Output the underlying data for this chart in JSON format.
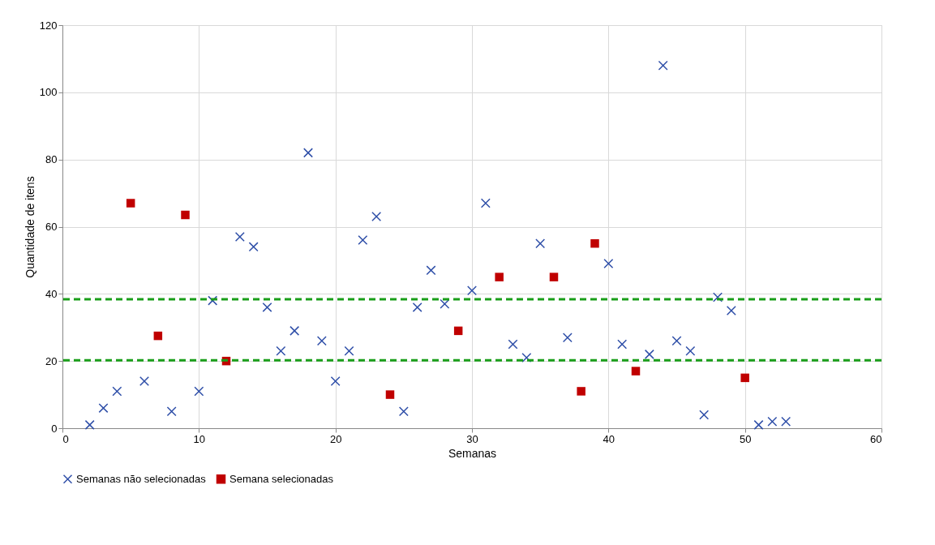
{
  "chart_data": {
    "type": "scatter",
    "xlabel": "Semanas",
    "ylabel": "Quantidade de itens",
    "xlim": [
      0,
      60
    ],
    "xticks": [
      0,
      10,
      20,
      30,
      40,
      50,
      60
    ],
    "ylim": [
      0,
      120
    ],
    "yticks": [
      0,
      20,
      40,
      60,
      80,
      100,
      120
    ],
    "grid": true,
    "legend": "bottom",
    "series": [
      {
        "name": "Semanas não selecionadas",
        "color": "#2f4fa8",
        "marker": "cross",
        "x": [
          2,
          3,
          4,
          6,
          8,
          10,
          11,
          13,
          14,
          15,
          16,
          17,
          18,
          19,
          20,
          21,
          22,
          23,
          25,
          26,
          27,
          28,
          30,
          31,
          33,
          34,
          35,
          37,
          40,
          41,
          43,
          44,
          45,
          46,
          47,
          48,
          49,
          51,
          52,
          53
        ],
        "values": [
          1,
          6,
          11,
          14,
          5,
          11,
          38,
          57,
          54,
          36,
          23,
          29,
          82,
          26,
          14,
          23,
          56,
          63,
          5,
          36,
          47,
          37,
          41,
          67,
          25,
          21,
          55,
          27,
          49,
          25,
          22,
          108,
          26,
          23,
          4,
          39,
          35,
          1,
          2,
          2
        ]
      },
      {
        "name": "Semana selecionadas",
        "color": "#c00000",
        "marker": "square",
        "x": [
          5,
          7,
          9,
          12,
          24,
          29,
          32,
          36,
          38,
          39,
          42,
          50
        ],
        "values": [
          67,
          27.5,
          63.5,
          20,
          10,
          29,
          45,
          45,
          11,
          55,
          17,
          15
        ]
      }
    ],
    "ref_lines": [
      {
        "axis": "y",
        "value": 38.4,
        "color": "#1a9e1a",
        "line_style": "dashed"
      },
      {
        "axis": "y",
        "value": 20.2,
        "color": "#1a9e1a",
        "line_style": "dashed"
      }
    ]
  }
}
